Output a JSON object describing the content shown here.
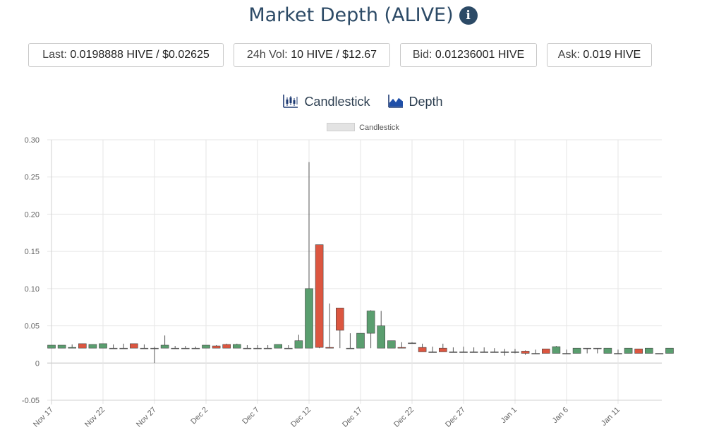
{
  "header": {
    "title": "Market Depth (ALIVE)",
    "info_icon": "info-circle-icon"
  },
  "stats": [
    {
      "key": "Last:",
      "value": "0.0198888 HIVE / $0.02625"
    },
    {
      "key": "24h Vol:",
      "value": "10 HIVE / $12.67"
    },
    {
      "key": "Bid:",
      "value": "0.01236001 HIVE"
    },
    {
      "key": "Ask:",
      "value": "0.019 HIVE"
    }
  ],
  "tabs": [
    {
      "label": "Candlestick",
      "icon": "candlestick-chart-icon"
    },
    {
      "label": "Depth",
      "icon": "area-chart-icon"
    }
  ],
  "colors": {
    "up": "#5a9e6f",
    "down": "#dc5640",
    "title": "#2c4a66"
  },
  "chart_data": {
    "type": "candlestick",
    "legend": "Candlestick",
    "ylim": [
      -0.05,
      0.3
    ],
    "yticks": [
      "-0.05",
      "0",
      "0.05",
      "0.10",
      "0.15",
      "0.20",
      "0.25",
      "0.30"
    ],
    "xticks": [
      "Nov 17",
      "Nov 22",
      "Nov 27",
      "Dec 2",
      "Dec 7",
      "Dec 12",
      "Dec 17",
      "Dec 22",
      "Dec 27",
      "Jan 1",
      "Jan 6",
      "Jan 11"
    ],
    "xtick_day_index": [
      0,
      5,
      10,
      15,
      20,
      25,
      30,
      35,
      40,
      45,
      50,
      55
    ],
    "grid": true,
    "candles": [
      {
        "day": "Nov 17",
        "open": 0.02,
        "close": 0.024,
        "high": 0.024,
        "low": 0.02
      },
      {
        "day": "Nov 18",
        "open": 0.02,
        "close": 0.024,
        "high": 0.024,
        "low": 0.02
      },
      {
        "day": "Nov 19",
        "open": 0.02,
        "close": 0.021,
        "high": 0.025,
        "low": 0.02
      },
      {
        "day": "Nov 20",
        "open": 0.026,
        "close": 0.02,
        "high": 0.026,
        "low": 0.02
      },
      {
        "day": "Nov 21",
        "open": 0.02,
        "close": 0.025,
        "high": 0.025,
        "low": 0.02
      },
      {
        "day": "Nov 22",
        "open": 0.02,
        "close": 0.026,
        "high": 0.026,
        "low": 0.02
      },
      {
        "day": "Nov 23",
        "open": 0.02,
        "close": 0.02,
        "high": 0.025,
        "low": 0.02
      },
      {
        "day": "Nov 24",
        "open": 0.02,
        "close": 0.02,
        "high": 0.026,
        "low": 0.02
      },
      {
        "day": "Nov 25",
        "open": 0.026,
        "close": 0.02,
        "high": 0.026,
        "low": 0.02
      },
      {
        "day": "Nov 26",
        "open": 0.02,
        "close": 0.02,
        "high": 0.025,
        "low": 0.02
      },
      {
        "day": "Nov 27",
        "open": 0.02,
        "close": 0.02,
        "high": 0.022,
        "low": 0.0
      },
      {
        "day": "Nov 28",
        "open": 0.02,
        "close": 0.024,
        "high": 0.037,
        "low": 0.02
      },
      {
        "day": "Nov 29",
        "open": 0.02,
        "close": 0.02,
        "high": 0.023,
        "low": 0.02
      },
      {
        "day": "Nov 30",
        "open": 0.02,
        "close": 0.02,
        "high": 0.023,
        "low": 0.02
      },
      {
        "day": "Dec 1",
        "open": 0.02,
        "close": 0.02,
        "high": 0.022,
        "low": 0.02
      },
      {
        "day": "Dec 2",
        "open": 0.02,
        "close": 0.024,
        "high": 0.024,
        "low": 0.02
      },
      {
        "day": "Dec 3",
        "open": 0.023,
        "close": 0.02,
        "high": 0.024,
        "low": 0.02
      },
      {
        "day": "Dec 4",
        "open": 0.025,
        "close": 0.02,
        "high": 0.026,
        "low": 0.02
      },
      {
        "day": "Dec 5",
        "open": 0.02,
        "close": 0.025,
        "high": 0.026,
        "low": 0.02
      },
      {
        "day": "Dec 6",
        "open": 0.02,
        "close": 0.02,
        "high": 0.024,
        "low": 0.02
      },
      {
        "day": "Dec 7",
        "open": 0.02,
        "close": 0.02,
        "high": 0.024,
        "low": 0.02
      },
      {
        "day": "Dec 8",
        "open": 0.02,
        "close": 0.02,
        "high": 0.024,
        "low": 0.02
      },
      {
        "day": "Dec 9",
        "open": 0.02,
        "close": 0.025,
        "high": 0.025,
        "low": 0.02
      },
      {
        "day": "Dec 10",
        "open": 0.02,
        "close": 0.02,
        "high": 0.024,
        "low": 0.02
      },
      {
        "day": "Dec 11",
        "open": 0.02,
        "close": 0.03,
        "high": 0.038,
        "low": 0.02
      },
      {
        "day": "Dec 12",
        "open": 0.02,
        "close": 0.1,
        "high": 0.27,
        "low": 0.02
      },
      {
        "day": "Dec 13",
        "open": 0.159,
        "close": 0.021,
        "high": 0.159,
        "low": 0.02
      },
      {
        "day": "Dec 14",
        "open": 0.021,
        "close": 0.02,
        "high": 0.08,
        "low": 0.02
      },
      {
        "day": "Dec 15",
        "open": 0.074,
        "close": 0.044,
        "high": 0.074,
        "low": 0.02
      },
      {
        "day": "Dec 16",
        "open": 0.02,
        "close": 0.02,
        "high": 0.04,
        "low": 0.02
      },
      {
        "day": "Dec 17",
        "open": 0.02,
        "close": 0.04,
        "high": 0.04,
        "low": 0.02
      },
      {
        "day": "Dec 18",
        "open": 0.04,
        "close": 0.07,
        "high": 0.071,
        "low": 0.02
      },
      {
        "day": "Dec 19",
        "open": 0.02,
        "close": 0.05,
        "high": 0.07,
        "low": 0.02
      },
      {
        "day": "Dec 20",
        "open": 0.02,
        "close": 0.03,
        "high": 0.03,
        "low": 0.02
      },
      {
        "day": "Dec 21",
        "open": 0.021,
        "close": 0.02,
        "high": 0.028,
        "low": 0.02
      },
      {
        "day": "Dec 22",
        "open": 0.027,
        "close": 0.027,
        "high": 0.028,
        "low": 0.027
      },
      {
        "day": "Dec 23",
        "open": 0.021,
        "close": 0.015,
        "high": 0.026,
        "low": 0.015
      },
      {
        "day": "Dec 24",
        "open": 0.015,
        "close": 0.015,
        "high": 0.022,
        "low": 0.015
      },
      {
        "day": "Dec 25",
        "open": 0.02,
        "close": 0.015,
        "high": 0.026,
        "low": 0.015
      },
      {
        "day": "Dec 26",
        "open": 0.015,
        "close": 0.015,
        "high": 0.021,
        "low": 0.015
      },
      {
        "day": "Dec 27",
        "open": 0.015,
        "close": 0.015,
        "high": 0.022,
        "low": 0.015
      },
      {
        "day": "Dec 28",
        "open": 0.015,
        "close": 0.015,
        "high": 0.021,
        "low": 0.015
      },
      {
        "day": "Dec 29",
        "open": 0.015,
        "close": 0.015,
        "high": 0.021,
        "low": 0.015
      },
      {
        "day": "Dec 30",
        "open": 0.015,
        "close": 0.015,
        "high": 0.02,
        "low": 0.015
      },
      {
        "day": "Dec 31",
        "open": 0.015,
        "close": 0.015,
        "high": 0.019,
        "low": 0.01
      },
      {
        "day": "Jan 1",
        "open": 0.015,
        "close": 0.015,
        "high": 0.019,
        "low": 0.013
      },
      {
        "day": "Jan 2",
        "open": 0.016,
        "close": 0.013,
        "high": 0.017,
        "low": 0.011
      },
      {
        "day": "Jan 3",
        "open": 0.013,
        "close": 0.013,
        "high": 0.018,
        "low": 0.013
      },
      {
        "day": "Jan 4",
        "open": 0.019,
        "close": 0.013,
        "high": 0.019,
        "low": 0.013
      },
      {
        "day": "Jan 5",
        "open": 0.013,
        "close": 0.022,
        "high": 0.023,
        "low": 0.013
      },
      {
        "day": "Jan 6",
        "open": 0.013,
        "close": 0.013,
        "high": 0.018,
        "low": 0.013
      },
      {
        "day": "Jan 7",
        "open": 0.013,
        "close": 0.02,
        "high": 0.02,
        "low": 0.013
      },
      {
        "day": "Jan 8",
        "open": 0.02,
        "close": 0.02,
        "high": 0.02,
        "low": 0.013
      },
      {
        "day": "Jan 9",
        "open": 0.02,
        "close": 0.02,
        "high": 0.02,
        "low": 0.013
      },
      {
        "day": "Jan 10",
        "open": 0.013,
        "close": 0.02,
        "high": 0.02,
        "low": 0.013
      },
      {
        "day": "Jan 11",
        "open": 0.013,
        "close": 0.013,
        "high": 0.018,
        "low": 0.013
      },
      {
        "day": "Jan 12",
        "open": 0.013,
        "close": 0.02,
        "high": 0.02,
        "low": 0.013
      },
      {
        "day": "Jan 13",
        "open": 0.019,
        "close": 0.013,
        "high": 0.019,
        "low": 0.013
      },
      {
        "day": "Jan 14",
        "open": 0.013,
        "close": 0.02,
        "high": 0.02,
        "low": 0.013
      },
      {
        "day": "Jan 15",
        "open": 0.013,
        "close": 0.013,
        "high": 0.013,
        "low": 0.013
      },
      {
        "day": "Jan 16",
        "open": 0.013,
        "close": 0.02,
        "high": 0.02,
        "low": 0.013
      }
    ]
  }
}
